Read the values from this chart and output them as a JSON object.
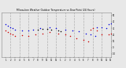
{
  "title": "Milwaukee Weather Outdoor Temperature vs Dew Point (24 Hours)",
  "bg_color": "#e8e8e8",
  "plot_bg_color": "#e8e8e8",
  "grid_color": "#b0b0b0",
  "temp_color": "#0000dd",
  "dew_color": "#cc0000",
  "black_color": "#000000",
  "xlim": [
    0,
    24
  ],
  "ylim": [
    -15,
    55
  ],
  "y_ticks": [
    -10,
    0,
    10,
    20,
    30,
    40,
    50
  ],
  "y_labels": [
    "-10",
    "0",
    "10",
    "20",
    "30",
    "40",
    "50"
  ],
  "x_tick_positions": [
    1,
    2,
    3,
    4,
    5,
    6,
    7,
    8,
    9,
    10,
    11,
    12,
    13,
    14,
    15,
    16,
    17,
    18,
    19,
    20,
    21,
    22,
    23,
    24
  ],
  "x_labels": [
    "1",
    "2",
    "3",
    "4",
    "5",
    "6",
    "7",
    "8",
    "9",
    "10",
    "11",
    "12",
    "1",
    "2",
    "3",
    "4",
    "5",
    "6",
    "7",
    "8",
    "9",
    "10",
    "11",
    "12"
  ],
  "vgrid_x": [
    2,
    4,
    6,
    8,
    10,
    12,
    14,
    16,
    18,
    20,
    22,
    24
  ],
  "temp_x": [
    1.0,
    1.5,
    2.0,
    2.5,
    3.0,
    4.5,
    6.0,
    7.0,
    8.5,
    10.5,
    12.0,
    14.0,
    15.5,
    17.0,
    18.5,
    19.5,
    20.5,
    21.0,
    22.0,
    23.0,
    23.5,
    24.0
  ],
  "temp_y": [
    36,
    34,
    32,
    30,
    28,
    27,
    26,
    28,
    30,
    31,
    30,
    28,
    27,
    25,
    22,
    20,
    18,
    32,
    32,
    30,
    36,
    38
  ],
  "dew_x": [
    1.0,
    1.5,
    2.0,
    2.5,
    3.0,
    4.5,
    6.0,
    7.5,
    9.0,
    10.5,
    12.5,
    14.0,
    15.0,
    16.5,
    18.0,
    19.0,
    19.5,
    20.0,
    21.0,
    22.0,
    23.5,
    24.0
  ],
  "dew_y": [
    26,
    24,
    22,
    20,
    18,
    19,
    18,
    20,
    22,
    24,
    22,
    20,
    18,
    14,
    12,
    10,
    28,
    30,
    26,
    20,
    20,
    22
  ],
  "black_x": [
    8.0,
    9.0,
    10.0,
    11.0,
    12.5,
    13.0
  ],
  "black_y": [
    28,
    29,
    29,
    28,
    26,
    25
  ]
}
